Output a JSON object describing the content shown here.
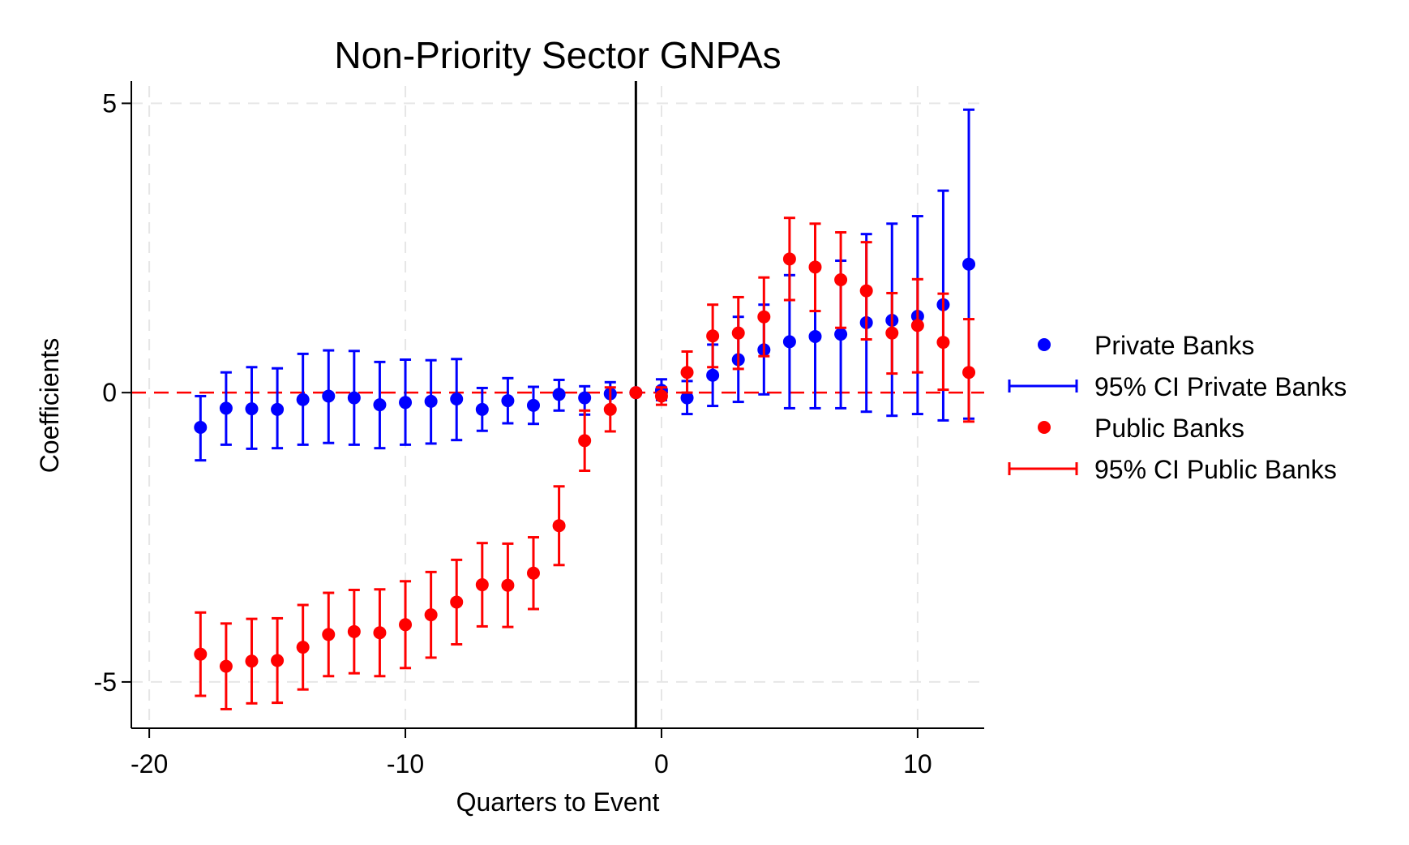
{
  "chart_data": {
    "type": "scatter",
    "title": "Non-Priority Sector GNPAs",
    "xlabel": "Quarters to Event",
    "ylabel": "Coefficients",
    "xlim": [
      -20.7,
      12.6
    ],
    "ylim": [
      -5.8,
      5.3
    ],
    "xticks": [
      -20,
      -10,
      0,
      10
    ],
    "xtick_labels": [
      "-20",
      "-10",
      "0",
      "10"
    ],
    "yticks": [
      -5,
      0,
      5
    ],
    "ytick_labels": [
      "-5",
      "0",
      "5"
    ],
    "grid": true,
    "legend_position": "right",
    "event_line_x": -1,
    "reference_line_y": 0,
    "colors": {
      "private": "#0000ff",
      "public": "#ff0000",
      "event_line": "#000000",
      "grid": "#e6e6e6"
    },
    "series": [
      {
        "name": "Private Banks",
        "ci_name": "95% CI Private Banks",
        "color": "#0000ff",
        "x": [
          -18,
          -17,
          -16,
          -15,
          -14,
          -13,
          -12,
          -11,
          -10,
          -9,
          -8,
          -7,
          -6,
          -5,
          -4,
          -3,
          -2,
          -1,
          0,
          1,
          2,
          3,
          4,
          5,
          6,
          7,
          8,
          9,
          10,
          11,
          12
        ],
        "y": [
          -0.6,
          -0.27,
          -0.28,
          -0.29,
          -0.12,
          -0.06,
          -0.09,
          -0.21,
          -0.17,
          -0.15,
          -0.11,
          -0.29,
          -0.14,
          -0.22,
          -0.03,
          -0.09,
          -0.02,
          0.0,
          0.04,
          -0.09,
          0.3,
          0.57,
          0.74,
          0.88,
          0.97,
          1.01,
          1.21,
          1.25,
          1.32,
          1.52,
          2.22
        ],
        "ci_low": [
          -1.17,
          -0.9,
          -0.97,
          -0.96,
          -0.9,
          -0.87,
          -0.9,
          -0.96,
          -0.9,
          -0.88,
          -0.82,
          -0.66,
          -0.53,
          -0.54,
          -0.31,
          -0.38,
          -0.31,
          0.0,
          -0.13,
          -0.37,
          -0.23,
          -0.16,
          -0.03,
          -0.27,
          -0.27,
          -0.27,
          -0.33,
          -0.4,
          -0.37,
          -0.48,
          -0.45
        ],
        "ci_high": [
          -0.06,
          0.35,
          0.44,
          0.42,
          0.67,
          0.73,
          0.72,
          0.53,
          0.57,
          0.56,
          0.58,
          0.08,
          0.25,
          0.1,
          0.22,
          0.11,
          0.18,
          0.0,
          0.23,
          0.2,
          0.83,
          1.31,
          1.52,
          2.03,
          2.2,
          2.28,
          2.74,
          2.92,
          3.05,
          3.49,
          4.89
        ]
      },
      {
        "name": "Public Banks",
        "ci_name": "95% CI Public Banks",
        "color": "#ff0000",
        "x": [
          -18,
          -17,
          -16,
          -15,
          -14,
          -13,
          -12,
          -11,
          -10,
          -9,
          -8,
          -7,
          -6,
          -5,
          -4,
          -3,
          -2,
          -1,
          0,
          1,
          2,
          3,
          4,
          5,
          6,
          7,
          8,
          9,
          10,
          11,
          12
        ],
        "y": [
          -4.52,
          -4.73,
          -4.64,
          -4.63,
          -4.4,
          -4.18,
          -4.13,
          -4.15,
          -4.01,
          -3.84,
          -3.62,
          -3.32,
          -3.33,
          -3.12,
          -2.3,
          -0.83,
          -0.29,
          0.0,
          -0.06,
          0.35,
          0.98,
          1.03,
          1.31,
          2.31,
          2.17,
          1.95,
          1.76,
          1.03,
          1.16,
          0.87,
          0.35
        ],
        "ci_low": [
          -5.24,
          -5.47,
          -5.37,
          -5.36,
          -5.13,
          -4.9,
          -4.85,
          -4.9,
          -4.76,
          -4.58,
          -4.35,
          -4.04,
          -4.05,
          -3.74,
          -2.98,
          -1.35,
          -0.67,
          0.0,
          -0.21,
          0.0,
          0.44,
          0.41,
          0.63,
          1.6,
          1.41,
          1.12,
          0.92,
          0.33,
          0.35,
          0.05,
          -0.5
        ],
        "ci_high": [
          -3.8,
          -3.99,
          -3.91,
          -3.9,
          -3.67,
          -3.46,
          -3.41,
          -3.4,
          -3.26,
          -3.1,
          -2.89,
          -2.6,
          -2.61,
          -2.5,
          -1.62,
          -0.31,
          0.09,
          0.0,
          0.09,
          0.71,
          1.52,
          1.65,
          1.99,
          3.02,
          2.92,
          2.77,
          2.6,
          1.72,
          1.96,
          1.71,
          1.27
        ]
      }
    ]
  }
}
